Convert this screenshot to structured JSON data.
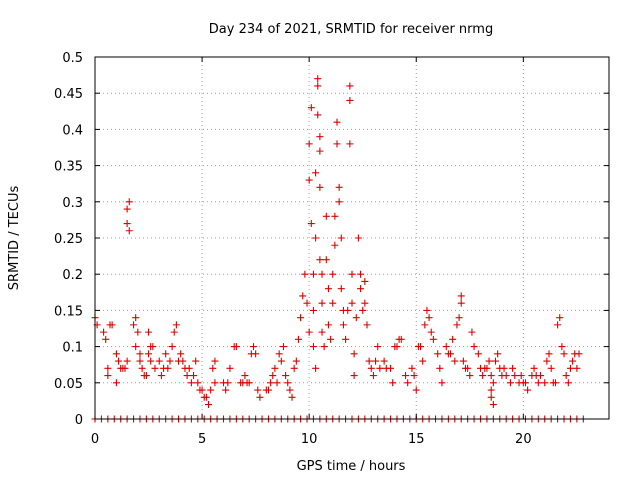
{
  "chart_data": {
    "type": "scatter",
    "title": "Day 234 of 2021, SRMTID for receiver nrmg",
    "xlabel": "GPS time / hours",
    "ylabel": "SRMTID / TECUs",
    "xlim": [
      0,
      24
    ],
    "ylim": [
      0,
      0.5
    ],
    "x_ticks": [
      0,
      5,
      10,
      15,
      20
    ],
    "y_ticks": [
      0,
      0.05,
      0.1,
      0.15,
      0.2,
      0.25,
      0.3,
      0.35,
      0.4,
      0.45,
      0.5
    ],
    "x_tick_labels": [
      "0",
      "5",
      "10",
      "15",
      "20"
    ],
    "y_tick_labels": [
      "0",
      "0.05",
      "0.1",
      "0.15",
      "0.2",
      "0.25",
      "0.3",
      "0.35",
      "0.4",
      "0.45",
      "0.5"
    ],
    "grid": true,
    "legend": "none",
    "marker": "+",
    "color": "#dd0000",
    "series": [
      {
        "name": "SRMTID",
        "points": [
          [
            0.0,
            0.14
          ],
          [
            0.1,
            0.13
          ],
          [
            0.4,
            0.12
          ],
          [
            0.5,
            0.11
          ],
          [
            0.6,
            0.07
          ],
          [
            0.6,
            0.06
          ],
          [
            0.7,
            0.13
          ],
          [
            0.8,
            0.13
          ],
          [
            1.0,
            0.09
          ],
          [
            1.0,
            0.05
          ],
          [
            1.1,
            0.08
          ],
          [
            1.2,
            0.07
          ],
          [
            1.3,
            0.07
          ],
          [
            1.4,
            0.07
          ],
          [
            1.5,
            0.08
          ],
          [
            1.5,
            0.29
          ],
          [
            1.6,
            0.3
          ],
          [
            1.5,
            0.27
          ],
          [
            1.6,
            0.26
          ],
          [
            1.8,
            0.13
          ],
          [
            1.9,
            0.14
          ],
          [
            1.9,
            0.1
          ],
          [
            2.0,
            0.12
          ],
          [
            2.1,
            0.09
          ],
          [
            2.1,
            0.08
          ],
          [
            2.2,
            0.07
          ],
          [
            2.3,
            0.06
          ],
          [
            2.4,
            0.06
          ],
          [
            2.5,
            0.12
          ],
          [
            2.5,
            0.09
          ],
          [
            2.6,
            0.08
          ],
          [
            2.6,
            0.1
          ],
          [
            2.7,
            0.1
          ],
          [
            2.8,
            0.07
          ],
          [
            3.0,
            0.08
          ],
          [
            3.1,
            0.06
          ],
          [
            3.2,
            0.07
          ],
          [
            3.3,
            0.09
          ],
          [
            3.4,
            0.07
          ],
          [
            3.5,
            0.08
          ],
          [
            3.6,
            0.1
          ],
          [
            3.7,
            0.12
          ],
          [
            3.8,
            0.13
          ],
          [
            3.9,
            0.08
          ],
          [
            4.0,
            0.09
          ],
          [
            4.1,
            0.08
          ],
          [
            4.2,
            0.07
          ],
          [
            4.3,
            0.06
          ],
          [
            4.4,
            0.07
          ],
          [
            4.5,
            0.05
          ],
          [
            4.6,
            0.06
          ],
          [
            4.7,
            0.08
          ],
          [
            4.8,
            0.05
          ],
          [
            4.9,
            0.04
          ],
          [
            5.0,
            0.04
          ],
          [
            5.1,
            0.03
          ],
          [
            5.2,
            0.03
          ],
          [
            5.3,
            0.02
          ],
          [
            5.4,
            0.04
          ],
          [
            5.5,
            0.07
          ],
          [
            5.6,
            0.08
          ],
          [
            5.6,
            0.05
          ],
          [
            6.0,
            0.05
          ],
          [
            6.1,
            0.04
          ],
          [
            6.2,
            0.05
          ],
          [
            6.3,
            0.07
          ],
          [
            6.5,
            0.1
          ],
          [
            6.6,
            0.1
          ],
          [
            6.8,
            0.05
          ],
          [
            6.9,
            0.05
          ],
          [
            7.0,
            0.06
          ],
          [
            7.1,
            0.05
          ],
          [
            7.2,
            0.05
          ],
          [
            7.3,
            0.09
          ],
          [
            7.4,
            0.1
          ],
          [
            7.5,
            0.09
          ],
          [
            7.6,
            0.04
          ],
          [
            7.7,
            0.03
          ],
          [
            8.0,
            0.04
          ],
          [
            8.1,
            0.04
          ],
          [
            8.2,
            0.05
          ],
          [
            8.3,
            0.06
          ],
          [
            8.4,
            0.07
          ],
          [
            8.5,
            0.05
          ],
          [
            8.6,
            0.09
          ],
          [
            8.7,
            0.08
          ],
          [
            8.8,
            0.1
          ],
          [
            8.9,
            0.06
          ],
          [
            9.0,
            0.05
          ],
          [
            9.1,
            0.04
          ],
          [
            9.2,
            0.03
          ],
          [
            9.3,
            0.07
          ],
          [
            9.4,
            0.08
          ],
          [
            9.5,
            0.11
          ],
          [
            9.6,
            0.14
          ],
          [
            9.7,
            0.17
          ],
          [
            9.8,
            0.2
          ],
          [
            9.9,
            0.16
          ],
          [
            10.0,
            0.12
          ],
          [
            10.0,
            0.33
          ],
          [
            10.0,
            0.38
          ],
          [
            10.1,
            0.27
          ],
          [
            10.1,
            0.43
          ],
          [
            10.2,
            0.2
          ],
          [
            10.2,
            0.15
          ],
          [
            10.2,
            0.1
          ],
          [
            10.3,
            0.07
          ],
          [
            10.3,
            0.25
          ],
          [
            10.3,
            0.34
          ],
          [
            10.4,
            0.42
          ],
          [
            10.4,
            0.46
          ],
          [
            10.4,
            0.47
          ],
          [
            10.5,
            0.37
          ],
          [
            10.5,
            0.39
          ],
          [
            10.5,
            0.32
          ],
          [
            10.5,
            0.22
          ],
          [
            10.6,
            0.2
          ],
          [
            10.6,
            0.16
          ],
          [
            10.6,
            0.12
          ],
          [
            10.7,
            0.1
          ],
          [
            10.8,
            0.22
          ],
          [
            10.8,
            0.28
          ],
          [
            10.9,
            0.18
          ],
          [
            10.9,
            0.13
          ],
          [
            11.0,
            0.11
          ],
          [
            11.1,
            0.16
          ],
          [
            11.1,
            0.2
          ],
          [
            11.2,
            0.28
          ],
          [
            11.2,
            0.24
          ],
          [
            11.3,
            0.41
          ],
          [
            11.3,
            0.38
          ],
          [
            11.4,
            0.32
          ],
          [
            11.4,
            0.3
          ],
          [
            11.5,
            0.25
          ],
          [
            11.5,
            0.18
          ],
          [
            11.6,
            0.15
          ],
          [
            11.6,
            0.13
          ],
          [
            11.7,
            0.11
          ],
          [
            11.8,
            0.15
          ],
          [
            11.9,
            0.44
          ],
          [
            11.9,
            0.46
          ],
          [
            11.9,
            0.38
          ],
          [
            12.0,
            0.2
          ],
          [
            12.0,
            0.16
          ],
          [
            12.1,
            0.09
          ],
          [
            12.1,
            0.06
          ],
          [
            12.2,
            0.14
          ],
          [
            12.3,
            0.25
          ],
          [
            12.4,
            0.2
          ],
          [
            12.4,
            0.18
          ],
          [
            12.5,
            0.15
          ],
          [
            12.6,
            0.16
          ],
          [
            12.6,
            0.19
          ],
          [
            12.7,
            0.13
          ],
          [
            12.8,
            0.08
          ],
          [
            12.9,
            0.07
          ],
          [
            13.0,
            0.06
          ],
          [
            13.1,
            0.08
          ],
          [
            13.2,
            0.1
          ],
          [
            13.3,
            0.07
          ],
          [
            13.5,
            0.08
          ],
          [
            13.6,
            0.07
          ],
          [
            13.8,
            0.07
          ],
          [
            13.9,
            0.05
          ],
          [
            14.0,
            0.1
          ],
          [
            14.1,
            0.1
          ],
          [
            14.2,
            0.11
          ],
          [
            14.3,
            0.11
          ],
          [
            14.5,
            0.06
          ],
          [
            14.6,
            0.05
          ],
          [
            14.8,
            0.07
          ],
          [
            14.9,
            0.06
          ],
          [
            15.0,
            0.04
          ],
          [
            15.1,
            0.1
          ],
          [
            15.2,
            0.1
          ],
          [
            15.3,
            0.08
          ],
          [
            15.4,
            0.13
          ],
          [
            15.5,
            0.15
          ],
          [
            15.6,
            0.14
          ],
          [
            15.7,
            0.12
          ],
          [
            15.8,
            0.11
          ],
          [
            16.0,
            0.09
          ],
          [
            16.1,
            0.07
          ],
          [
            16.2,
            0.05
          ],
          [
            16.4,
            0.1
          ],
          [
            16.5,
            0.09
          ],
          [
            16.6,
            0.09
          ],
          [
            16.7,
            0.11
          ],
          [
            16.8,
            0.08
          ],
          [
            16.9,
            0.13
          ],
          [
            17.0,
            0.14
          ],
          [
            17.1,
            0.17
          ],
          [
            17.1,
            0.16
          ],
          [
            17.2,
            0.08
          ],
          [
            17.3,
            0.07
          ],
          [
            17.4,
            0.07
          ],
          [
            17.5,
            0.06
          ],
          [
            17.6,
            0.12
          ],
          [
            17.7,
            0.1
          ],
          [
            17.9,
            0.09
          ],
          [
            18.0,
            0.07
          ],
          [
            18.1,
            0.06
          ],
          [
            18.2,
            0.07
          ],
          [
            18.3,
            0.07
          ],
          [
            18.4,
            0.08
          ],
          [
            18.5,
            0.06
          ],
          [
            18.5,
            0.04
          ],
          [
            18.5,
            0.03
          ],
          [
            18.6,
            0.05
          ],
          [
            18.6,
            0.02
          ],
          [
            18.7,
            0.08
          ],
          [
            18.8,
            0.09
          ],
          [
            18.9,
            0.07
          ],
          [
            19.0,
            0.06
          ],
          [
            19.1,
            0.07
          ],
          [
            19.2,
            0.06
          ],
          [
            19.4,
            0.05
          ],
          [
            19.5,
            0.07
          ],
          [
            19.6,
            0.06
          ],
          [
            19.8,
            0.05
          ],
          [
            19.9,
            0.06
          ],
          [
            20.0,
            0.05
          ],
          [
            20.1,
            0.05
          ],
          [
            20.2,
            0.04
          ],
          [
            20.4,
            0.06
          ],
          [
            20.5,
            0.07
          ],
          [
            20.6,
            0.06
          ],
          [
            20.7,
            0.05
          ],
          [
            20.8,
            0.06
          ],
          [
            21.0,
            0.05
          ],
          [
            21.1,
            0.08
          ],
          [
            21.2,
            0.09
          ],
          [
            21.3,
            0.07
          ],
          [
            21.4,
            0.05
          ],
          [
            21.5,
            0.05
          ],
          [
            21.6,
            0.13
          ],
          [
            21.7,
            0.14
          ],
          [
            21.8,
            0.1
          ],
          [
            21.9,
            0.09
          ],
          [
            22.0,
            0.06
          ],
          [
            22.1,
            0.05
          ],
          [
            22.2,
            0.07
          ],
          [
            22.3,
            0.08
          ],
          [
            22.4,
            0.09
          ],
          [
            22.5,
            0.07
          ],
          [
            22.6,
            0.09
          ]
        ],
        "zero_points_x": [
          0.0,
          0.3,
          0.6,
          0.9,
          1.2,
          1.5,
          1.8,
          2.1,
          2.4,
          2.7,
          3.0,
          3.3,
          3.6,
          3.9,
          4.2,
          4.5,
          4.8,
          5.1,
          5.4,
          5.7,
          6.0,
          6.3,
          6.6,
          6.9,
          7.2,
          7.5,
          7.8,
          8.1,
          8.4,
          8.7,
          9.0,
          9.3,
          9.6,
          9.9,
          10.2,
          10.5,
          10.8,
          11.1,
          11.4,
          11.7,
          12.0,
          12.3,
          12.6,
          12.9,
          13.2,
          13.5,
          13.8,
          14.1,
          14.4,
          14.7,
          15.0,
          15.3,
          15.6,
          15.9,
          16.2,
          16.5,
          16.8,
          17.1,
          17.4,
          17.7,
          18.0,
          18.3,
          18.6,
          18.9,
          19.2,
          19.5,
          19.8,
          20.1,
          20.4,
          20.7,
          21.0,
          21.3,
          21.6,
          21.9,
          22.2,
          22.5,
          22.8
        ]
      }
    ]
  }
}
